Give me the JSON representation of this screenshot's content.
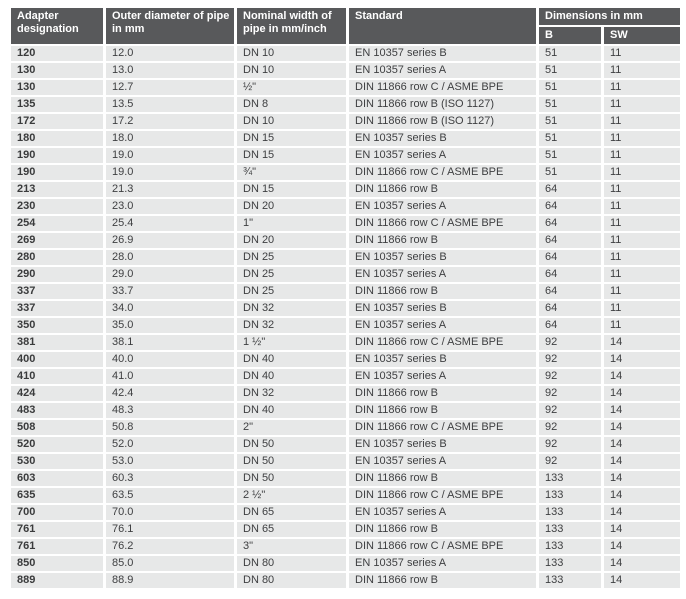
{
  "table": {
    "header": {
      "adapter": "Adapter designation",
      "outer": "Outer diameter of pipe in mm",
      "nominal": "Nominal width of pipe in mm/inch",
      "standard": "Standard",
      "dimensions_group": "Dimensions in mm",
      "b": "B",
      "sw": "SW"
    },
    "column_keys": [
      "designation",
      "outer-diameter",
      "nominal-width",
      "standard",
      "dimension-b",
      "dimension-sw"
    ],
    "rows": [
      [
        "120",
        "12.0",
        "DN 10",
        "EN 10357 series B",
        "51",
        "11"
      ],
      [
        "130",
        "13.0",
        "DN 10",
        "EN 10357 series A",
        "51",
        "11"
      ],
      [
        "130",
        "12.7",
        "½\"",
        "DIN 11866 row C / ASME BPE",
        "51",
        "11"
      ],
      [
        "135",
        "13.5",
        "DN 8",
        "DIN 11866 row B (ISO 1127)",
        "51",
        "11"
      ],
      [
        "172",
        "17.2",
        "DN 10",
        "DIN 11866 row B (ISO 1127)",
        "51",
        "11"
      ],
      [
        "180",
        "18.0",
        "DN 15",
        "EN 10357 series B",
        "51",
        "11"
      ],
      [
        "190",
        "19.0",
        "DN 15",
        "EN 10357 series A",
        "51",
        "11"
      ],
      [
        "190",
        "19.0",
        "¾\"",
        "DIN 11866 row C / ASME BPE",
        "51",
        "11"
      ],
      [
        "213",
        "21.3",
        "DN 15",
        "DIN 11866 row B",
        "64",
        "11"
      ],
      [
        "230",
        "23.0",
        "DN 20",
        "EN 10357 series A",
        "64",
        "11"
      ],
      [
        "254",
        "25.4",
        "1\"",
        "DIN 11866 row C / ASME BPE",
        "64",
        "11"
      ],
      [
        "269",
        "26.9",
        "DN 20",
        "DIN 11866 row B",
        "64",
        "11"
      ],
      [
        "280",
        "28.0",
        "DN 25",
        "EN 10357 series B",
        "64",
        "11"
      ],
      [
        "290",
        "29.0",
        "DN 25",
        "EN 10357 series A",
        "64",
        "11"
      ],
      [
        "337",
        "33.7",
        "DN 25",
        "DIN 11866 row B",
        "64",
        "11"
      ],
      [
        "337",
        "34.0",
        "DN 32",
        "EN 10357 series B",
        "64",
        "11"
      ],
      [
        "350",
        "35.0",
        "DN 32",
        "EN 10357 series A",
        "64",
        "11"
      ],
      [
        "381",
        "38.1",
        "1 ½\"",
        "DIN 11866 row C / ASME BPE",
        "92",
        "14"
      ],
      [
        "400",
        "40.0",
        "DN 40",
        "EN 10357 series B",
        "92",
        "14"
      ],
      [
        "410",
        "41.0",
        "DN 40",
        "EN 10357 series A",
        "92",
        "14"
      ],
      [
        "424",
        "42.4",
        "DN 32",
        "DIN 11866 row B",
        "92",
        "14"
      ],
      [
        "483",
        "48.3",
        "DN 40",
        "DIN 11866 row B",
        "92",
        "14"
      ],
      [
        "508",
        "50.8",
        "2\"",
        "DIN 11866 row C / ASME BPE",
        "92",
        "14"
      ],
      [
        "520",
        "52.0",
        "DN 50",
        "EN 10357 series B",
        "92",
        "14"
      ],
      [
        "530",
        "53.0",
        "DN 50",
        "EN 10357 series A",
        "92",
        "14"
      ],
      [
        "603",
        "60.3",
        "DN 50",
        "DIN 11866 row B",
        "133",
        "14"
      ],
      [
        "635",
        "63.5",
        "2 ½\"",
        "DIN 11866 row C / ASME BPE",
        "133",
        "14"
      ],
      [
        "700",
        "70.0",
        "DN 65",
        "EN 10357 series A",
        "133",
        "14"
      ],
      [
        "761",
        "76.1",
        "DN 65",
        "DIN 11866 row B",
        "133",
        "14"
      ],
      [
        "761",
        "76.2",
        "3\"",
        "DIN 11866 row C / ASME BPE",
        "133",
        "14"
      ],
      [
        "850",
        "85.0",
        "DN 80",
        "EN 10357 series A",
        "133",
        "14"
      ],
      [
        "889",
        "88.9",
        "DN 80",
        "DIN 11866 row B",
        "133",
        "14"
      ]
    ]
  },
  "colors": {
    "header_background": "#58595b",
    "header_text": "#ffffff",
    "row_background": "#e7e8e8",
    "body_text": "#3e3f41",
    "separator": "#ffffff"
  }
}
